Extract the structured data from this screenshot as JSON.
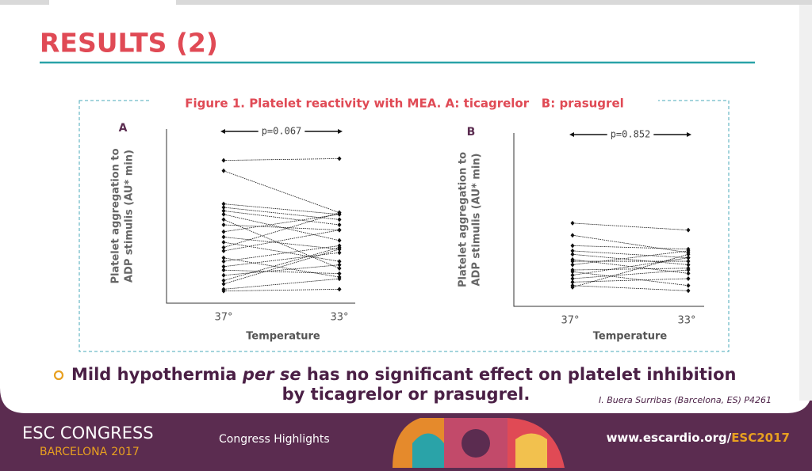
{
  "header": {
    "title": "RESULTS (2)"
  },
  "figure_caption": "Figure 1. Platelet reactivity with MEA. A: ticagrelor   B: prasugrel",
  "chart_data": [
    {
      "type": "line",
      "panel_label": "A",
      "annotation": "p=0.067",
      "x_label": "Temperature",
      "y_label": [
        "Platelet aggregation to",
        "ADP stimulis (AU* min)"
      ],
      "categories": [
        "37°",
        "33°"
      ],
      "ylim": [
        0,
        100
      ],
      "color": "#111111",
      "series": [
        {
          "values": [
            82,
            83
          ]
        },
        {
          "values": [
            76,
            52
          ]
        },
        {
          "values": [
            57,
            51
          ]
        },
        {
          "values": [
            55,
            48
          ]
        },
        {
          "values": [
            53,
            45
          ]
        },
        {
          "values": [
            51,
            36
          ]
        },
        {
          "values": [
            48,
            20
          ]
        },
        {
          "values": [
            45,
            42
          ]
        },
        {
          "values": [
            41,
            51
          ]
        },
        {
          "values": [
            38,
            31
          ]
        },
        {
          "values": [
            35,
            24
          ]
        },
        {
          "values": [
            32,
            52
          ]
        },
        {
          "values": [
            30,
            42
          ]
        },
        {
          "values": [
            26,
            15
          ]
        },
        {
          "values": [
            24,
            33
          ]
        },
        {
          "values": [
            21,
            29
          ]
        },
        {
          "values": [
            19,
            17
          ]
        },
        {
          "values": [
            16,
            22
          ]
        },
        {
          "values": [
            13,
            32
          ]
        },
        {
          "values": [
            11,
            31
          ]
        },
        {
          "values": [
            8,
            14
          ]
        },
        {
          "values": [
            7,
            8
          ]
        }
      ]
    },
    {
      "type": "line",
      "panel_label": "B",
      "annotation": "p=0.852",
      "x_label": "Temperature",
      "y_label": [
        "Platelet aggregation to",
        "ADP stimulis (AU* min)"
      ],
      "categories": [
        "37°",
        "33°"
      ],
      "ylim": [
        0,
        100
      ],
      "color": "#111111",
      "series": [
        {
          "values": [
            48,
            44
          ]
        },
        {
          "values": [
            41,
            31
          ]
        },
        {
          "values": [
            35,
            33
          ]
        },
        {
          "values": [
            32,
            28
          ]
        },
        {
          "values": [
            30,
            24
          ]
        },
        {
          "values": [
            27,
            19
          ]
        },
        {
          "values": [
            26,
            26
          ]
        },
        {
          "values": [
            24,
            32
          ]
        },
        {
          "values": [
            21,
            22
          ]
        },
        {
          "values": [
            20,
            12
          ]
        },
        {
          "values": [
            18,
            28
          ]
        },
        {
          "values": [
            16,
            21
          ]
        },
        {
          "values": [
            14,
            16
          ]
        },
        {
          "values": [
            12,
            9
          ]
        },
        {
          "values": [
            11,
            30
          ]
        }
      ]
    }
  ],
  "conclusion": {
    "part1": "Mild hypothermia ",
    "italic": "per se",
    "part2": " has no significant effect on platelet inhibition",
    "line2": "by ticagrelor or prasugrel."
  },
  "citation": "I. Buera Surribas (Barcelona, ES) P4261",
  "footer": {
    "brand": "ESC CONGRESS",
    "city": "BARCELONA",
    "year": "2017",
    "center": "Congress Highlights",
    "url": "www.escardio.org/",
    "url_highlight": "ESC2017"
  }
}
